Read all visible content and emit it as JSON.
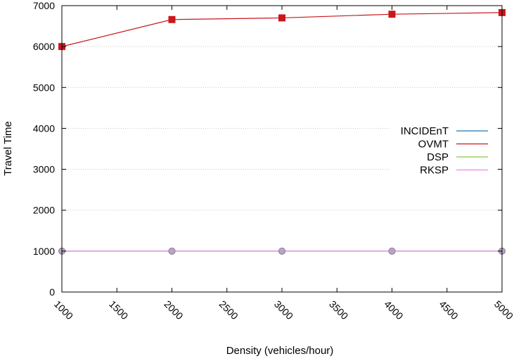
{
  "chart_data": {
    "type": "line",
    "title": "",
    "xlabel": "Density (vehicles/hour)",
    "ylabel": "Travel Time",
    "xlim": [
      1000,
      5000
    ],
    "ylim": [
      0,
      7000
    ],
    "x": [
      1000,
      2000,
      3000,
      4000,
      5000
    ],
    "xticks": [
      1000,
      1500,
      2000,
      2500,
      3000,
      3500,
      4000,
      4500,
      5000
    ],
    "yticks": [
      0,
      1000,
      2000,
      3000,
      4000,
      5000,
      6000,
      7000
    ],
    "grid": true,
    "legend_position": "right",
    "series": [
      {
        "name": "INCIDEnT",
        "values": [
          1000,
          1000,
          1000,
          1000,
          1000
        ],
        "color": "#1f77b4",
        "marker": "circle"
      },
      {
        "name": "OVMT",
        "values": [
          6000,
          6660,
          6700,
          6790,
          6830
        ],
        "color": "#c8171d",
        "marker": "square"
      },
      {
        "name": "DSP",
        "values": [
          1000,
          1000,
          1000,
          1000,
          1000
        ],
        "color": "#8cc63f",
        "marker": "circle"
      },
      {
        "name": "RKSP",
        "values": [
          1000,
          1000,
          1000,
          1000,
          1000
        ],
        "color": "#ee82ee",
        "marker": "circle"
      }
    ]
  }
}
